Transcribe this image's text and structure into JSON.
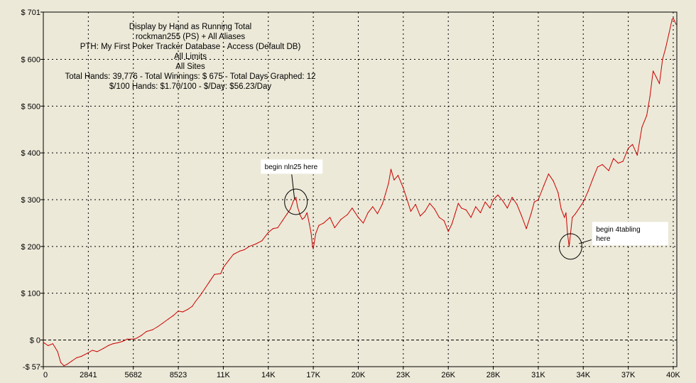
{
  "chart_data": {
    "type": "line",
    "title_lines": [
      "Display by Hand as Running Total",
      "rockman255 (PS) + All Aliases",
      "PTH: My First Poker Tracker Database - Access (Default DB)",
      "All Limits",
      "All Sites",
      "Total Hands: 39,776 - Total Winnings: $ 675 - Total Days Graphed: 12",
      "$/100 Hands: $1.70/100 - $/Day: $56.23/Day"
    ],
    "xlabel": "",
    "ylabel": "",
    "xlim": [
      0,
      40000
    ],
    "ylim": [
      -57,
      701
    ],
    "x_ticks": [
      {
        "value": 0,
        "label": "0"
      },
      {
        "value": 2841,
        "label": "2841"
      },
      {
        "value": 5682,
        "label": "5682"
      },
      {
        "value": 8523,
        "label": "8523"
      },
      {
        "value": 11364,
        "label": "11K"
      },
      {
        "value": 14205,
        "label": "14K"
      },
      {
        "value": 17046,
        "label": "17K"
      },
      {
        "value": 19887,
        "label": "20K"
      },
      {
        "value": 22728,
        "label": "23K"
      },
      {
        "value": 25569,
        "label": "26K"
      },
      {
        "value": 28410,
        "label": "28K"
      },
      {
        "value": 31251,
        "label": "31K"
      },
      {
        "value": 34092,
        "label": "34K"
      },
      {
        "value": 36933,
        "label": "37K"
      },
      {
        "value": 39774,
        "label": "40K"
      }
    ],
    "y_ticks": [
      {
        "value": 701,
        "label": "$ 701"
      },
      {
        "value": 600,
        "label": "$ 600"
      },
      {
        "value": 500,
        "label": "$ 500"
      },
      {
        "value": 400,
        "label": "$ 400"
      },
      {
        "value": 300,
        "label": "$ 300"
      },
      {
        "value": 200,
        "label": "$ 200"
      },
      {
        "value": 100,
        "label": "$ 100"
      },
      {
        "value": 0,
        "label": "$ 0"
      },
      {
        "value": -57,
        "label": "-$ 57"
      }
    ],
    "grid": true,
    "line_color": "#cc0000",
    "series": [
      {
        "name": "",
        "points": [
          [
            0,
            -5
          ],
          [
            300,
            -12
          ],
          [
            600,
            -8
          ],
          [
            900,
            -25
          ],
          [
            1100,
            -48
          ],
          [
            1300,
            -55
          ],
          [
            1500,
            -52
          ],
          [
            1800,
            -45
          ],
          [
            2100,
            -38
          ],
          [
            2400,
            -35
          ],
          [
            2800,
            -28
          ],
          [
            3100,
            -22
          ],
          [
            3400,
            -25
          ],
          [
            3800,
            -18
          ],
          [
            4100,
            -12
          ],
          [
            4400,
            -8
          ],
          [
            4700,
            -6
          ],
          [
            5000,
            -3
          ],
          [
            5300,
            2
          ],
          [
            5682,
            2
          ],
          [
            5900,
            4
          ],
          [
            6200,
            10
          ],
          [
            6500,
            18
          ],
          [
            6900,
            22
          ],
          [
            7200,
            28
          ],
          [
            7500,
            35
          ],
          [
            7900,
            45
          ],
          [
            8200,
            52
          ],
          [
            8523,
            62
          ],
          [
            8800,
            60
          ],
          [
            9100,
            65
          ],
          [
            9400,
            72
          ],
          [
            9600,
            82
          ],
          [
            9900,
            95
          ],
          [
            10200,
            110
          ],
          [
            10500,
            125
          ],
          [
            10800,
            140
          ],
          [
            11200,
            142
          ],
          [
            11364,
            155
          ],
          [
            11700,
            170
          ],
          [
            12000,
            183
          ],
          [
            12400,
            190
          ],
          [
            12700,
            193
          ],
          [
            13000,
            200
          ],
          [
            13400,
            205
          ],
          [
            13800,
            212
          ],
          [
            14205,
            230
          ],
          [
            14500,
            238
          ],
          [
            14800,
            240
          ],
          [
            15100,
            255
          ],
          [
            15400,
            270
          ],
          [
            15600,
            280
          ],
          [
            15800,
            298
          ],
          [
            15950,
            305
          ],
          [
            16050,
            285
          ],
          [
            16200,
            268
          ],
          [
            16350,
            258
          ],
          [
            16500,
            262
          ],
          [
            16650,
            272
          ],
          [
            16800,
            248
          ],
          [
            16900,
            230
          ],
          [
            17000,
            200
          ],
          [
            17046,
            195
          ],
          [
            17200,
            228
          ],
          [
            17400,
            245
          ],
          [
            17700,
            250
          ],
          [
            18100,
            262
          ],
          [
            18400,
            240
          ],
          [
            18800,
            258
          ],
          [
            19200,
            268
          ],
          [
            19500,
            282
          ],
          [
            19887,
            262
          ],
          [
            20200,
            250
          ],
          [
            20500,
            272
          ],
          [
            20800,
            285
          ],
          [
            21100,
            270
          ],
          [
            21400,
            290
          ],
          [
            21600,
            312
          ],
          [
            21800,
            335
          ],
          [
            21950,
            365
          ],
          [
            22150,
            342
          ],
          [
            22400,
            352
          ],
          [
            22728,
            325
          ],
          [
            22950,
            302
          ],
          [
            23200,
            275
          ],
          [
            23500,
            290
          ],
          [
            23800,
            265
          ],
          [
            24100,
            275
          ],
          [
            24400,
            292
          ],
          [
            24700,
            280
          ],
          [
            25000,
            262
          ],
          [
            25300,
            255
          ],
          [
            25569,
            232
          ],
          [
            25800,
            248
          ],
          [
            26000,
            270
          ],
          [
            26200,
            292
          ],
          [
            26400,
            282
          ],
          [
            26700,
            278
          ],
          [
            27000,
            262
          ],
          [
            27300,
            285
          ],
          [
            27600,
            272
          ],
          [
            27900,
            295
          ],
          [
            28200,
            282
          ],
          [
            28410,
            300
          ],
          [
            28700,
            310
          ],
          [
            29000,
            298
          ],
          [
            29300,
            282
          ],
          [
            29600,
            305
          ],
          [
            29900,
            290
          ],
          [
            30200,
            265
          ],
          [
            30500,
            238
          ],
          [
            30800,
            270
          ],
          [
            31000,
            295
          ],
          [
            31251,
            300
          ],
          [
            31600,
            330
          ],
          [
            31900,
            355
          ],
          [
            32200,
            340
          ],
          [
            32500,
            315
          ],
          [
            32700,
            280
          ],
          [
            32900,
            262
          ],
          [
            33000,
            272
          ],
          [
            33100,
            228
          ],
          [
            33200,
            200
          ],
          [
            33400,
            262
          ],
          [
            33600,
            270
          ],
          [
            34092,
            295
          ],
          [
            34400,
            318
          ],
          [
            34700,
            345
          ],
          [
            35000,
            370
          ],
          [
            35300,
            375
          ],
          [
            35700,
            362
          ],
          [
            36000,
            388
          ],
          [
            36300,
            378
          ],
          [
            36600,
            382
          ],
          [
            36933,
            410
          ],
          [
            37200,
            418
          ],
          [
            37500,
            395
          ],
          [
            37800,
            455
          ],
          [
            38100,
            480
          ],
          [
            38300,
            520
          ],
          [
            38500,
            575
          ],
          [
            38700,
            562
          ],
          [
            38900,
            548
          ],
          [
            39100,
            600
          ],
          [
            39300,
            625
          ],
          [
            39500,
            655
          ],
          [
            39700,
            685
          ],
          [
            39774,
            688
          ],
          [
            39950,
            675
          ]
        ]
      }
    ],
    "annotations": [
      {
        "text_lines": [
          "begin nln25 here"
        ],
        "x": 15950,
        "y": 300
      },
      {
        "text_lines": [
          "begin 4tabling",
          "here"
        ],
        "x": 33200,
        "y": 200
      }
    ]
  }
}
